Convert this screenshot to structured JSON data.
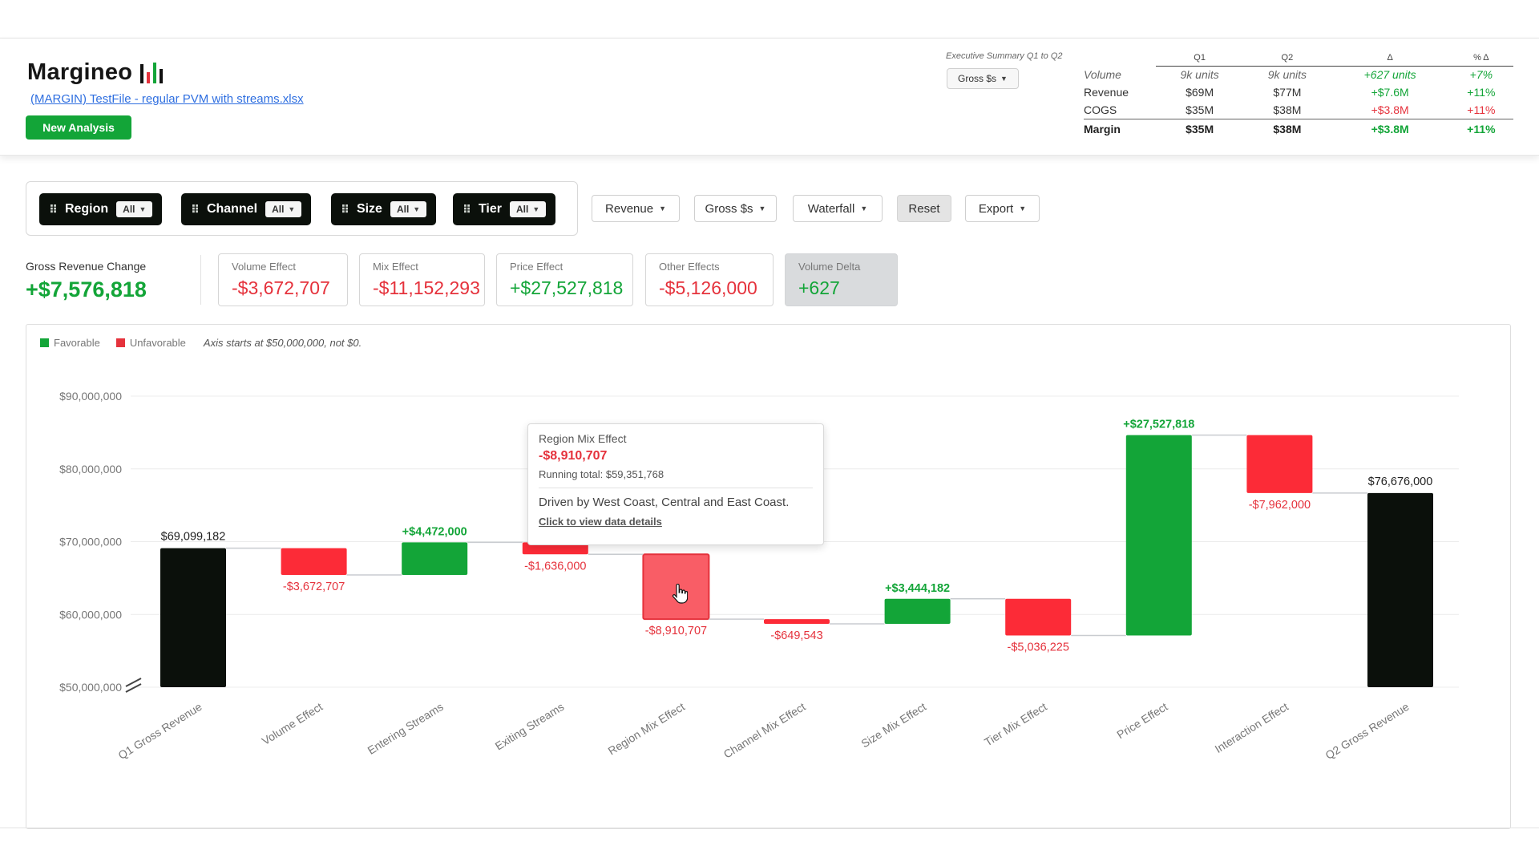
{
  "app": {
    "logo": "Margineo",
    "file_name": "(MARGIN) TestFile - regular PVM with streams.xlsx",
    "new_analysis_label": "New Analysis",
    "brand_green": "#13a538",
    "brand_red": "#e5323c"
  },
  "summary": {
    "label": "Executive Summary Q1 to Q2",
    "metric_select": "Gross $s",
    "columns": [
      "Q1",
      "Q2",
      "Δ",
      "% Δ"
    ],
    "rows": [
      {
        "label": "Volume",
        "q1": "9k units",
        "q2": "9k units",
        "delta": "+627 units",
        "pct": "+7%"
      },
      {
        "label": "Revenue",
        "q1": "$69M",
        "q2": "$77M",
        "delta": "+$7.6M",
        "pct": "+11%"
      },
      {
        "label": "COGS",
        "q1": "$35M",
        "q2": "$38M",
        "delta": "+$3.8M",
        "pct": "+11%"
      },
      {
        "label": "Margin",
        "q1": "$35M",
        "q2": "$38M",
        "delta": "+$3.8M",
        "pct": "+11%"
      }
    ]
  },
  "filters": [
    {
      "label": "Region",
      "value": "All"
    },
    {
      "label": "Channel",
      "value": "All"
    },
    {
      "label": "Size",
      "value": "All"
    },
    {
      "label": "Tier",
      "value": "All"
    }
  ],
  "toolbar": {
    "revenue": "Revenue",
    "gross": "Gross $s",
    "waterfall": "Waterfall",
    "reset": "Reset",
    "export": "Export"
  },
  "kpis": {
    "gross_label": "Gross Revenue Change",
    "gross_value": "+$7,576,818",
    "items": [
      {
        "label": "Volume Effect",
        "value": "-$3,672,707"
      },
      {
        "label": "Mix Effect",
        "value": "-$11,152,293"
      },
      {
        "label": "Price Effect",
        "value": "+$27,527,818"
      },
      {
        "label": "Other Effects",
        "value": "-$5,126,000"
      },
      {
        "label": "Volume Delta",
        "value": "+627"
      }
    ]
  },
  "legend": {
    "favorable": "Favorable",
    "unfavorable": "Unfavorable",
    "axis_note": "Axis starts at $50,000,000, not $0."
  },
  "chart_data": {
    "type": "waterfall",
    "categories": [
      "Q1 Gross Revenue",
      "Volume Effect",
      "Entering Streams",
      "Exiting Streams",
      "Region Mix Effect",
      "Channel Mix Effect",
      "Size Mix Effect",
      "Tier Mix Effect",
      "Price Effect",
      "Interaction Effect",
      "Q2 Gross Revenue"
    ],
    "values": [
      69099182,
      -3672707,
      4472000,
      -1636000,
      -8910707,
      -649543,
      3444182,
      -5036225,
      27527818,
      -7962000,
      76676000
    ],
    "kinds": [
      "total",
      "delta",
      "delta",
      "delta",
      "delta",
      "delta",
      "delta",
      "delta",
      "delta",
      "delta",
      "total"
    ],
    "labels": [
      "$69,099,182",
      "-$3,672,707",
      "+$4,472,000",
      "-$1,636,000",
      "-$8,910,707",
      "-$649,543",
      "+$3,444,182",
      "-$5,036,225",
      "+$27,527,818",
      "-$7,962,000",
      "$76,676,000"
    ],
    "y_ticks": [
      "$90,000,000",
      "$80,000,000",
      "$70,000,000",
      "$60,000,000",
      "$50,000,000"
    ],
    "ylim": [
      50000000,
      90000000
    ],
    "highlighted": "Region Mix Effect",
    "colors": {
      "total": "#0b100b",
      "favorable": "#13a538",
      "unfavorable": "#fc2b37",
      "highlight": "#f95d66"
    }
  },
  "tooltip": {
    "title": "Region Mix Effect",
    "value": "-$8,910,707",
    "running_total": "Running total: $59,351,768",
    "description": "Driven by West Coast, Central and East Coast.",
    "link": "Click to view data details"
  }
}
